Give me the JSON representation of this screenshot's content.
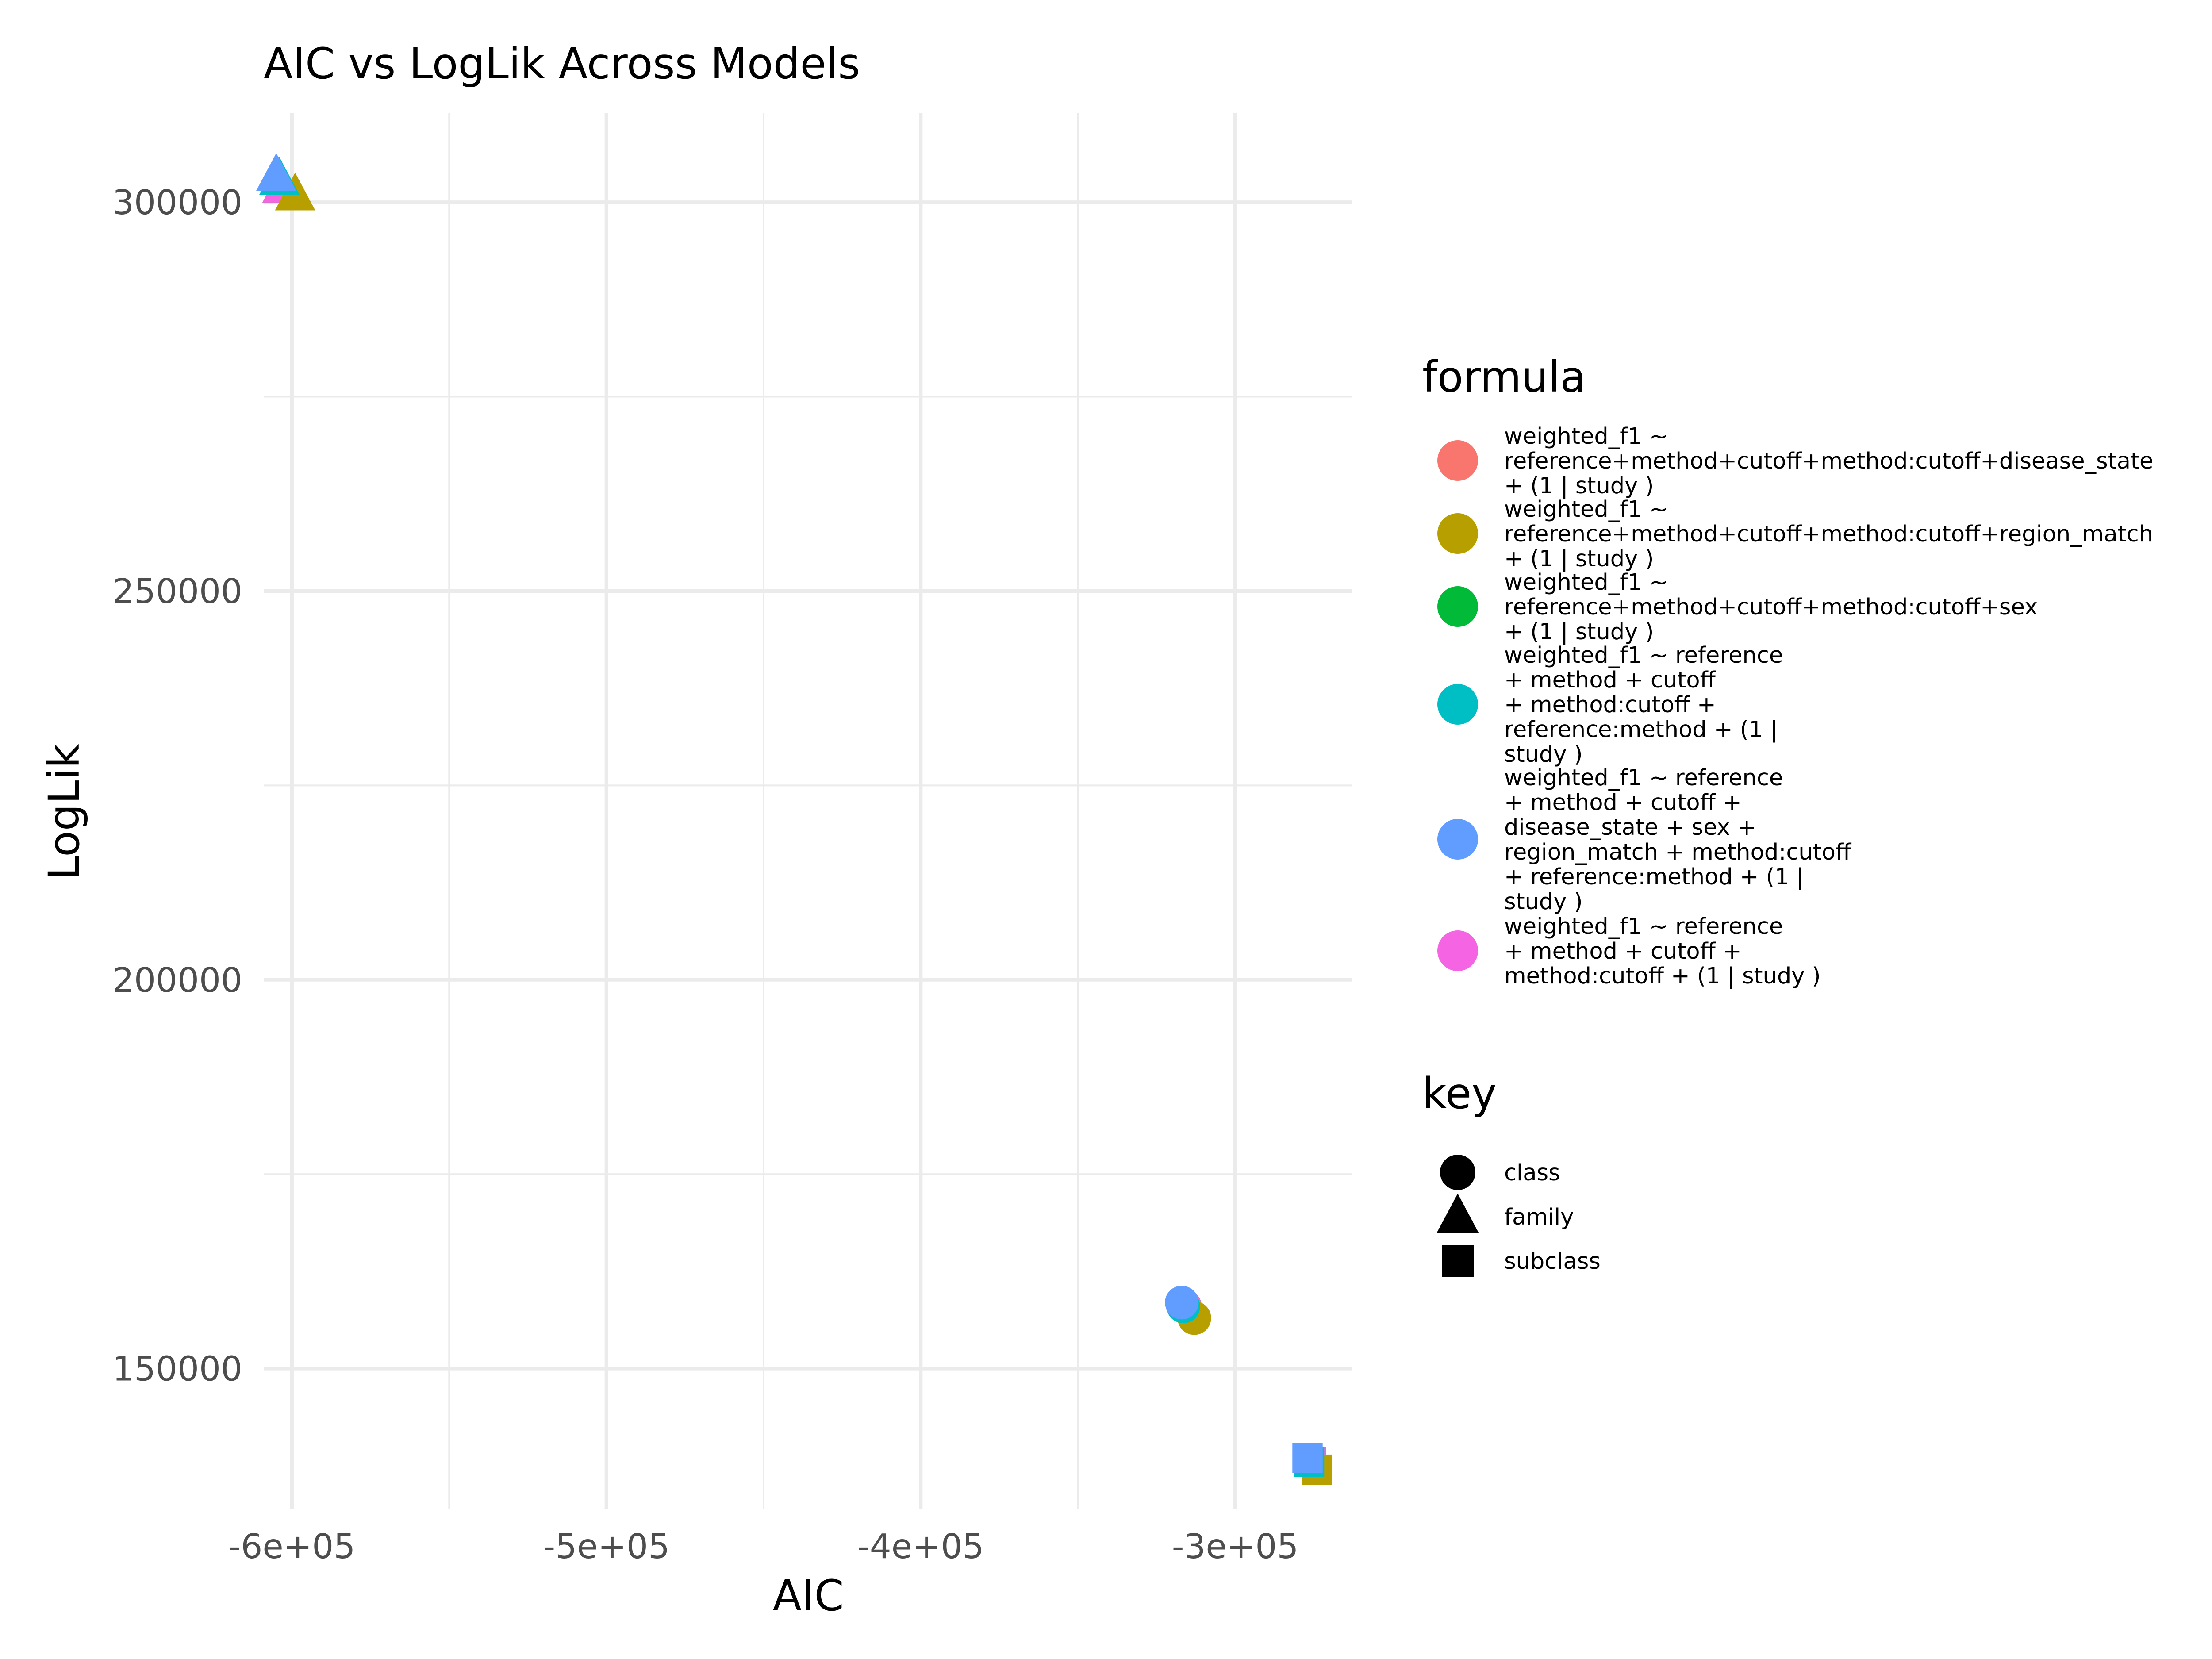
{
  "chart_data": {
    "type": "scatter",
    "title": "AIC vs LogLik Across Models",
    "xlabel": "AIC",
    "ylabel": "LogLik",
    "xlim": [
      -609000,
      -263000
    ],
    "ylim": [
      132000,
      311500
    ],
    "x_ticks": [
      {
        "value": -600000,
        "label": "-6e+05"
      },
      {
        "value": -500000,
        "label": "-5e+05"
      },
      {
        "value": -400000,
        "label": "-4e+05"
      },
      {
        "value": -300000,
        "label": "-3e+05"
      }
    ],
    "y_ticks": [
      {
        "value": 150000,
        "label": "150000"
      },
      {
        "value": 200000,
        "label": "200000"
      },
      {
        "value": 250000,
        "label": "250000"
      },
      {
        "value": 300000,
        "label": "300000"
      }
    ],
    "grid": true,
    "legend_position": "right",
    "color_legend": {
      "title": "formula",
      "entries": [
        {
          "color": "#F8766D",
          "lines": [
            "weighted_f1 ~",
            "reference+method+cutoff+method:cutoff+disease_state",
            "+ (1 | study )"
          ]
        },
        {
          "color": "#B79F00",
          "lines": [
            "weighted_f1 ~",
            "reference+method+cutoff+method:cutoff+region_match",
            "+ (1 | study )"
          ]
        },
        {
          "color": "#00BA38",
          "lines": [
            "weighted_f1 ~",
            "reference+method+cutoff+method:cutoff+sex",
            "+ (1 | study )"
          ]
        },
        {
          "color": "#00BFC4",
          "lines": [
            "weighted_f1 ~ reference",
            "+ method + cutoff",
            "+ method:cutoff +",
            "reference:method + (1 |",
            "study )"
          ]
        },
        {
          "color": "#619CFF",
          "lines": [
            "weighted_f1 ~ reference",
            "+ method + cutoff +",
            "disease_state + sex +",
            "region_match + method:cutoff",
            "+ reference:method + (1 |",
            "study )"
          ]
        },
        {
          "color": "#F564E3",
          "lines": [
            "weighted_f1 ~ reference",
            "+ method + cutoff +",
            "method:cutoff + (1 | study )"
          ]
        }
      ]
    },
    "shape_legend": {
      "title": "key",
      "entries": [
        {
          "shape": "circle",
          "label": "class"
        },
        {
          "shape": "triangle",
          "label": "family"
        },
        {
          "shape": "square",
          "label": "subclass"
        }
      ]
    },
    "series": [
      {
        "color": "#F8766D",
        "points": [
          {
            "x": -603000,
            "y": 302000,
            "key": "family"
          },
          {
            "x": -316000,
            "y": 158000,
            "key": "class"
          },
          {
            "x": -276000,
            "y": 138000,
            "key": "subclass"
          }
        ]
      },
      {
        "color": "#00BA38",
        "points": [
          {
            "x": -603000,
            "y": 302000,
            "key": "family"
          },
          {
            "x": -316000,
            "y": 158000,
            "key": "class"
          },
          {
            "x": -276000,
            "y": 138000,
            "key": "subclass"
          }
        ]
      },
      {
        "color": "#F564E3",
        "points": [
          {
            "x": -603000,
            "y": 302000,
            "key": "family"
          },
          {
            "x": -316000,
            "y": 158000,
            "key": "class"
          },
          {
            "x": -276000,
            "y": 138000,
            "key": "subclass"
          }
        ]
      },
      {
        "color": "#B79F00",
        "points": [
          {
            "x": -599000,
            "y": 301000,
            "key": "family"
          },
          {
            "x": -313000,
            "y": 156500,
            "key": "class"
          },
          {
            "x": -274000,
            "y": 137000,
            "key": "subclass"
          }
        ]
      },
      {
        "color": "#00BFC4",
        "points": [
          {
            "x": -604000,
            "y": 303000,
            "key": "family"
          },
          {
            "x": -316500,
            "y": 158000,
            "key": "class"
          },
          {
            "x": -276500,
            "y": 138000,
            "key": "subclass"
          }
        ]
      },
      {
        "color": "#619CFF",
        "points": [
          {
            "x": -605000,
            "y": 303500,
            "key": "family"
          },
          {
            "x": -317000,
            "y": 158500,
            "key": "class"
          },
          {
            "x": -277000,
            "y": 138500,
            "key": "subclass"
          }
        ]
      }
    ]
  }
}
